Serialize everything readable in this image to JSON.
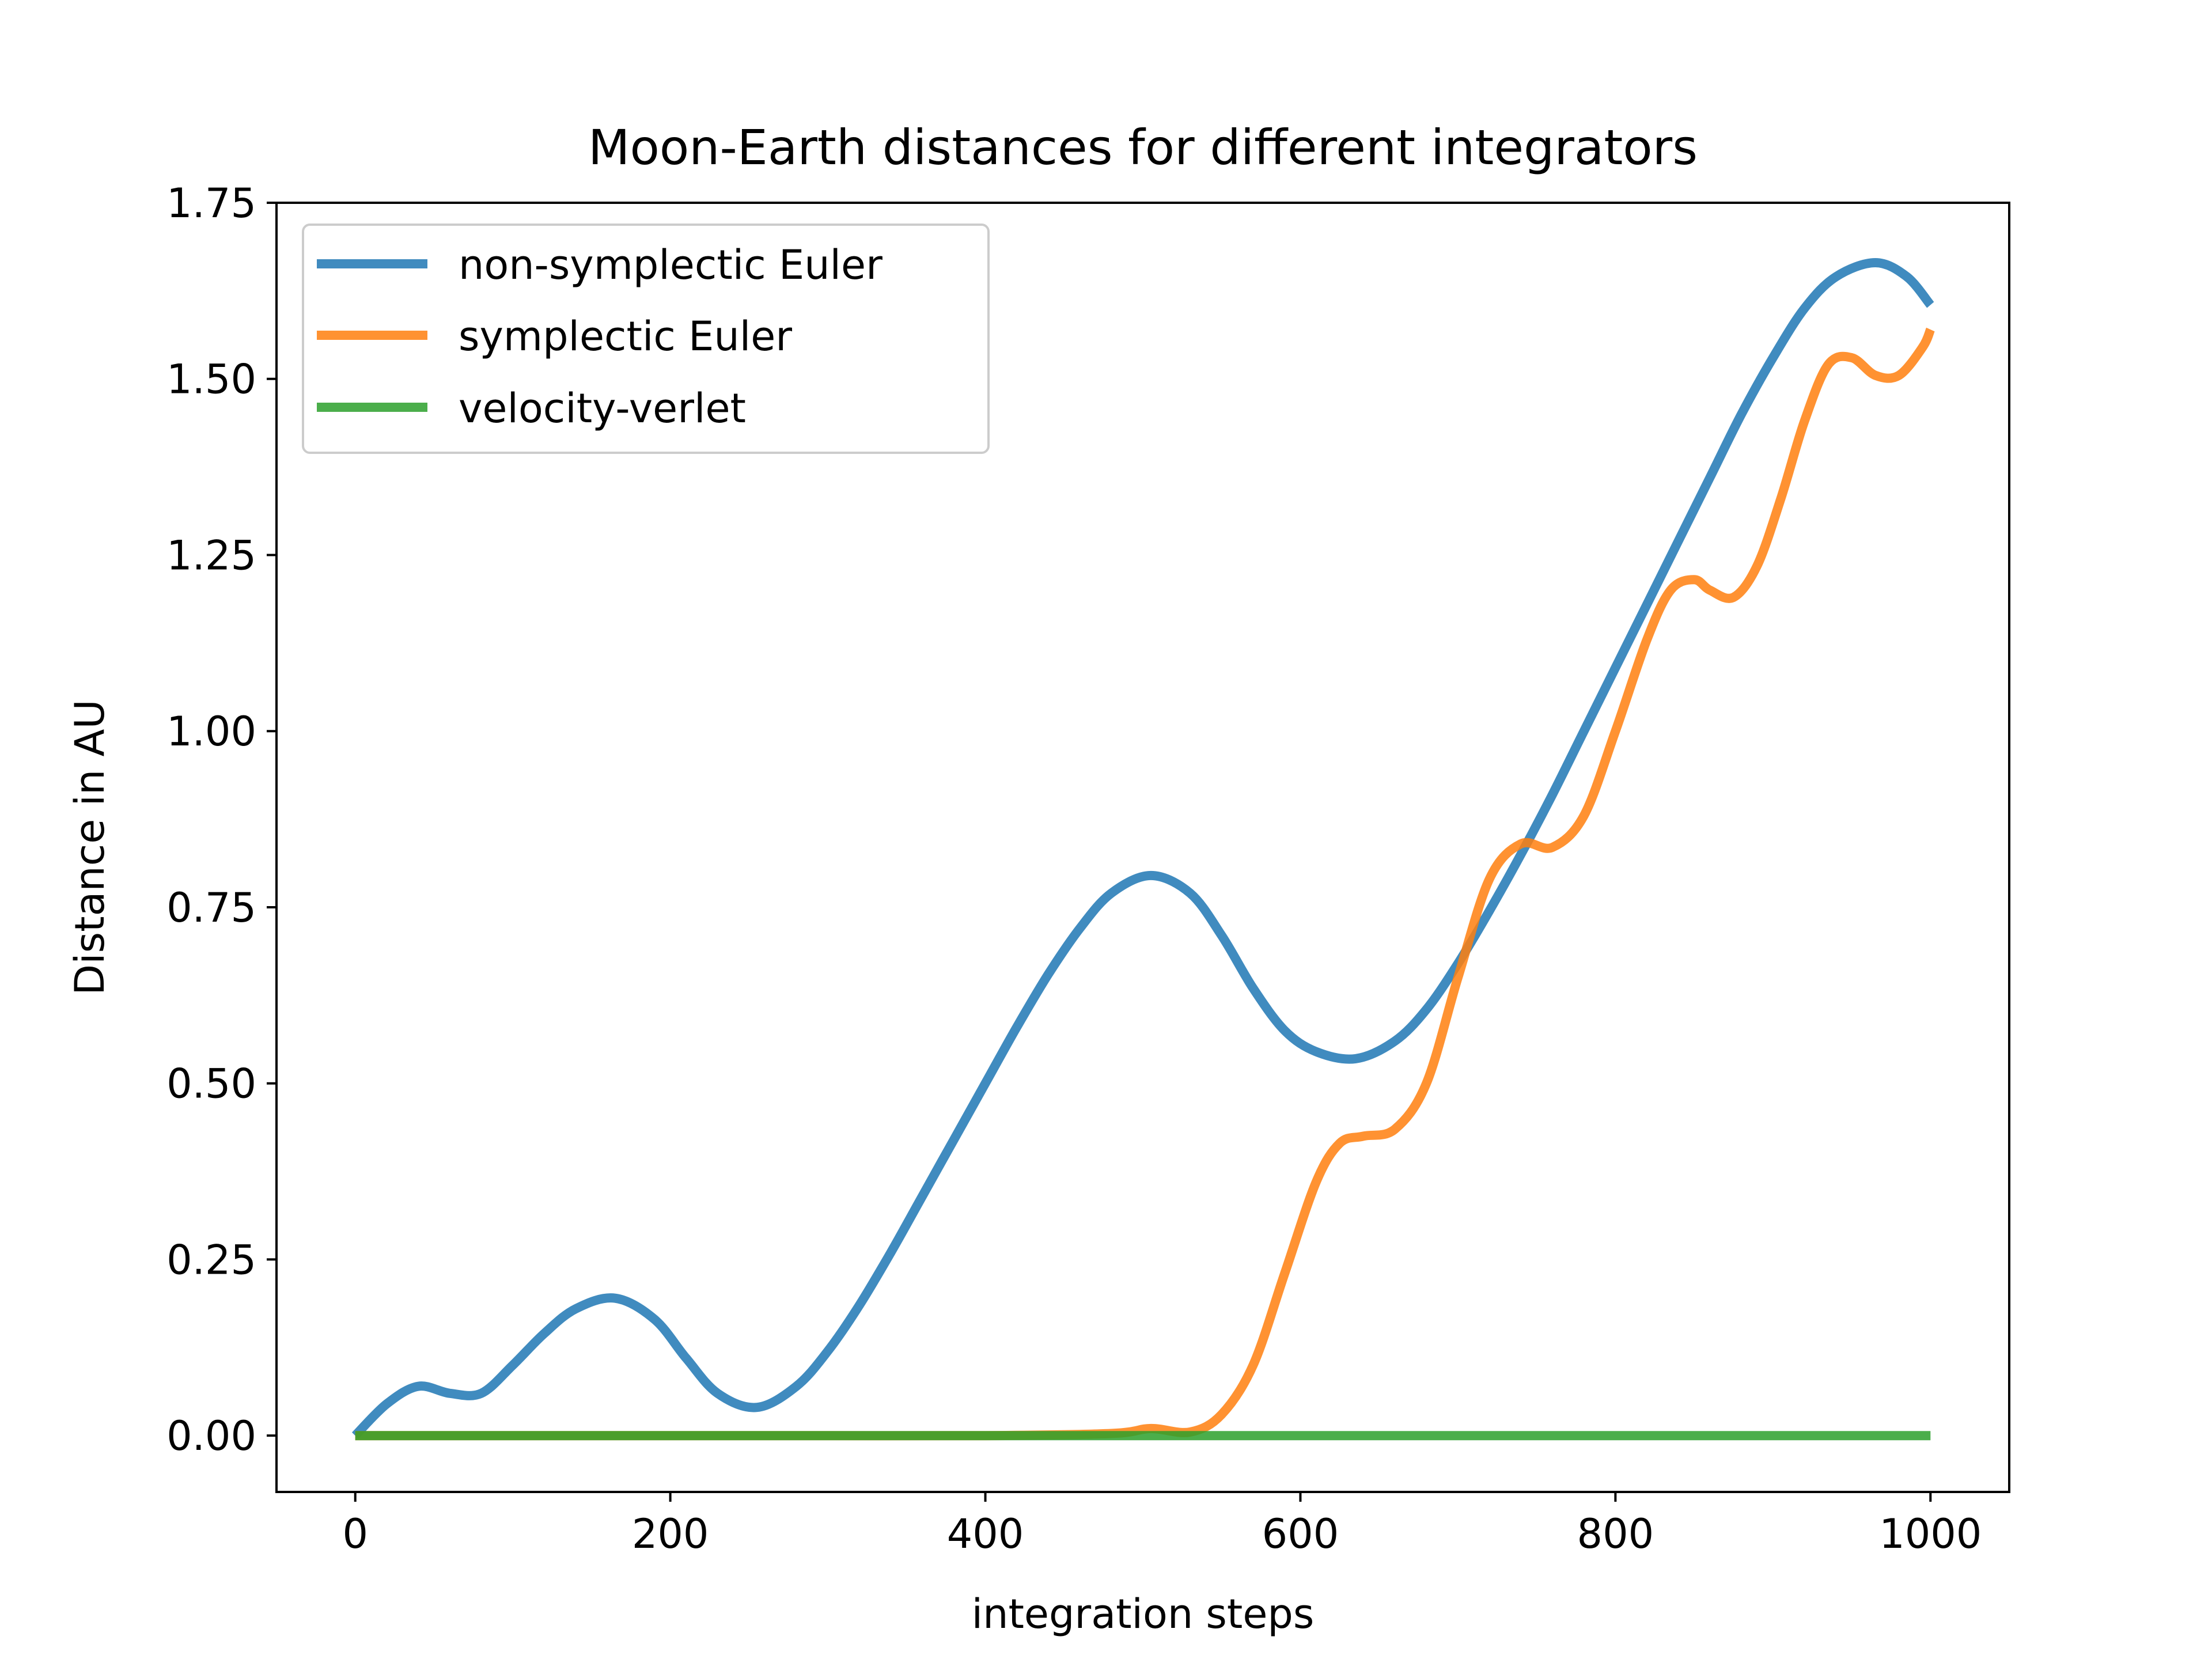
{
  "chart_data": {
    "type": "line",
    "title": "Moon-Earth distances for different integrators",
    "xlabel": "integration steps",
    "ylabel": "Distance in AU",
    "xlim": [
      -50,
      1050
    ],
    "ylim": [
      -0.08,
      1.75
    ],
    "xticks": [
      0,
      200,
      400,
      600,
      800,
      1000
    ],
    "xtick_labels": [
      "0",
      "200",
      "400",
      "600",
      "800",
      "1000"
    ],
    "yticks": [
      0.0,
      0.25,
      0.5,
      0.75,
      1.0,
      1.25,
      1.5,
      1.75
    ],
    "ytick_labels": [
      "0.00",
      "0.25",
      "0.50",
      "0.75",
      "1.00",
      "1.25",
      "1.50",
      "1.75"
    ],
    "grid": false,
    "legend_position": "upper-left",
    "series": [
      {
        "name": "non-symplectic Euler",
        "color": "#1f77b4",
        "x": [
          0,
          20,
          40,
          60,
          80,
          100,
          120,
          140,
          165,
          190,
          210,
          230,
          255,
          280,
          300,
          320,
          340,
          360,
          380,
          400,
          420,
          440,
          460,
          480,
          505,
          530,
          550,
          570,
          590,
          610,
          635,
          660,
          680,
          700,
          720,
          740,
          760,
          780,
          800,
          820,
          840,
          860,
          880,
          900,
          920,
          940,
          965,
          985,
          1000
        ],
        "y": [
          0.0,
          0.045,
          0.07,
          0.06,
          0.06,
          0.1,
          0.145,
          0.18,
          0.195,
          0.165,
          0.11,
          0.06,
          0.04,
          0.07,
          0.12,
          0.185,
          0.26,
          0.34,
          0.42,
          0.5,
          0.58,
          0.655,
          0.72,
          0.77,
          0.795,
          0.77,
          0.71,
          0.635,
          0.575,
          0.545,
          0.535,
          0.56,
          0.605,
          0.67,
          0.745,
          0.825,
          0.91,
          1.0,
          1.09,
          1.18,
          1.27,
          1.36,
          1.45,
          1.53,
          1.6,
          1.645,
          1.665,
          1.645,
          1.605
        ]
      },
      {
        "name": "symplectic Euler",
        "color": "#ff7f0e",
        "x": [
          0,
          100,
          200,
          300,
          400,
          480,
          505,
          530,
          550,
          570,
          590,
          610,
          625,
          640,
          660,
          680,
          700,
          720,
          740,
          760,
          780,
          800,
          820,
          835,
          850,
          860,
          875,
          890,
          905,
          920,
          935,
          950,
          965,
          980,
          995,
          1000
        ],
        "y": [
          0.0,
          0.0,
          0.0,
          0.0,
          0.0,
          0.003,
          0.01,
          0.005,
          0.03,
          0.1,
          0.23,
          0.36,
          0.415,
          0.425,
          0.435,
          0.5,
          0.65,
          0.79,
          0.84,
          0.835,
          0.88,
          1.0,
          1.13,
          1.2,
          1.215,
          1.2,
          1.19,
          1.235,
          1.33,
          1.44,
          1.52,
          1.53,
          1.505,
          1.505,
          1.545,
          1.57
        ]
      },
      {
        "name": "velocity-verlet",
        "color": "#2ca02c",
        "x": [
          0,
          1000
        ],
        "y": [
          0.0,
          0.0
        ]
      }
    ]
  }
}
